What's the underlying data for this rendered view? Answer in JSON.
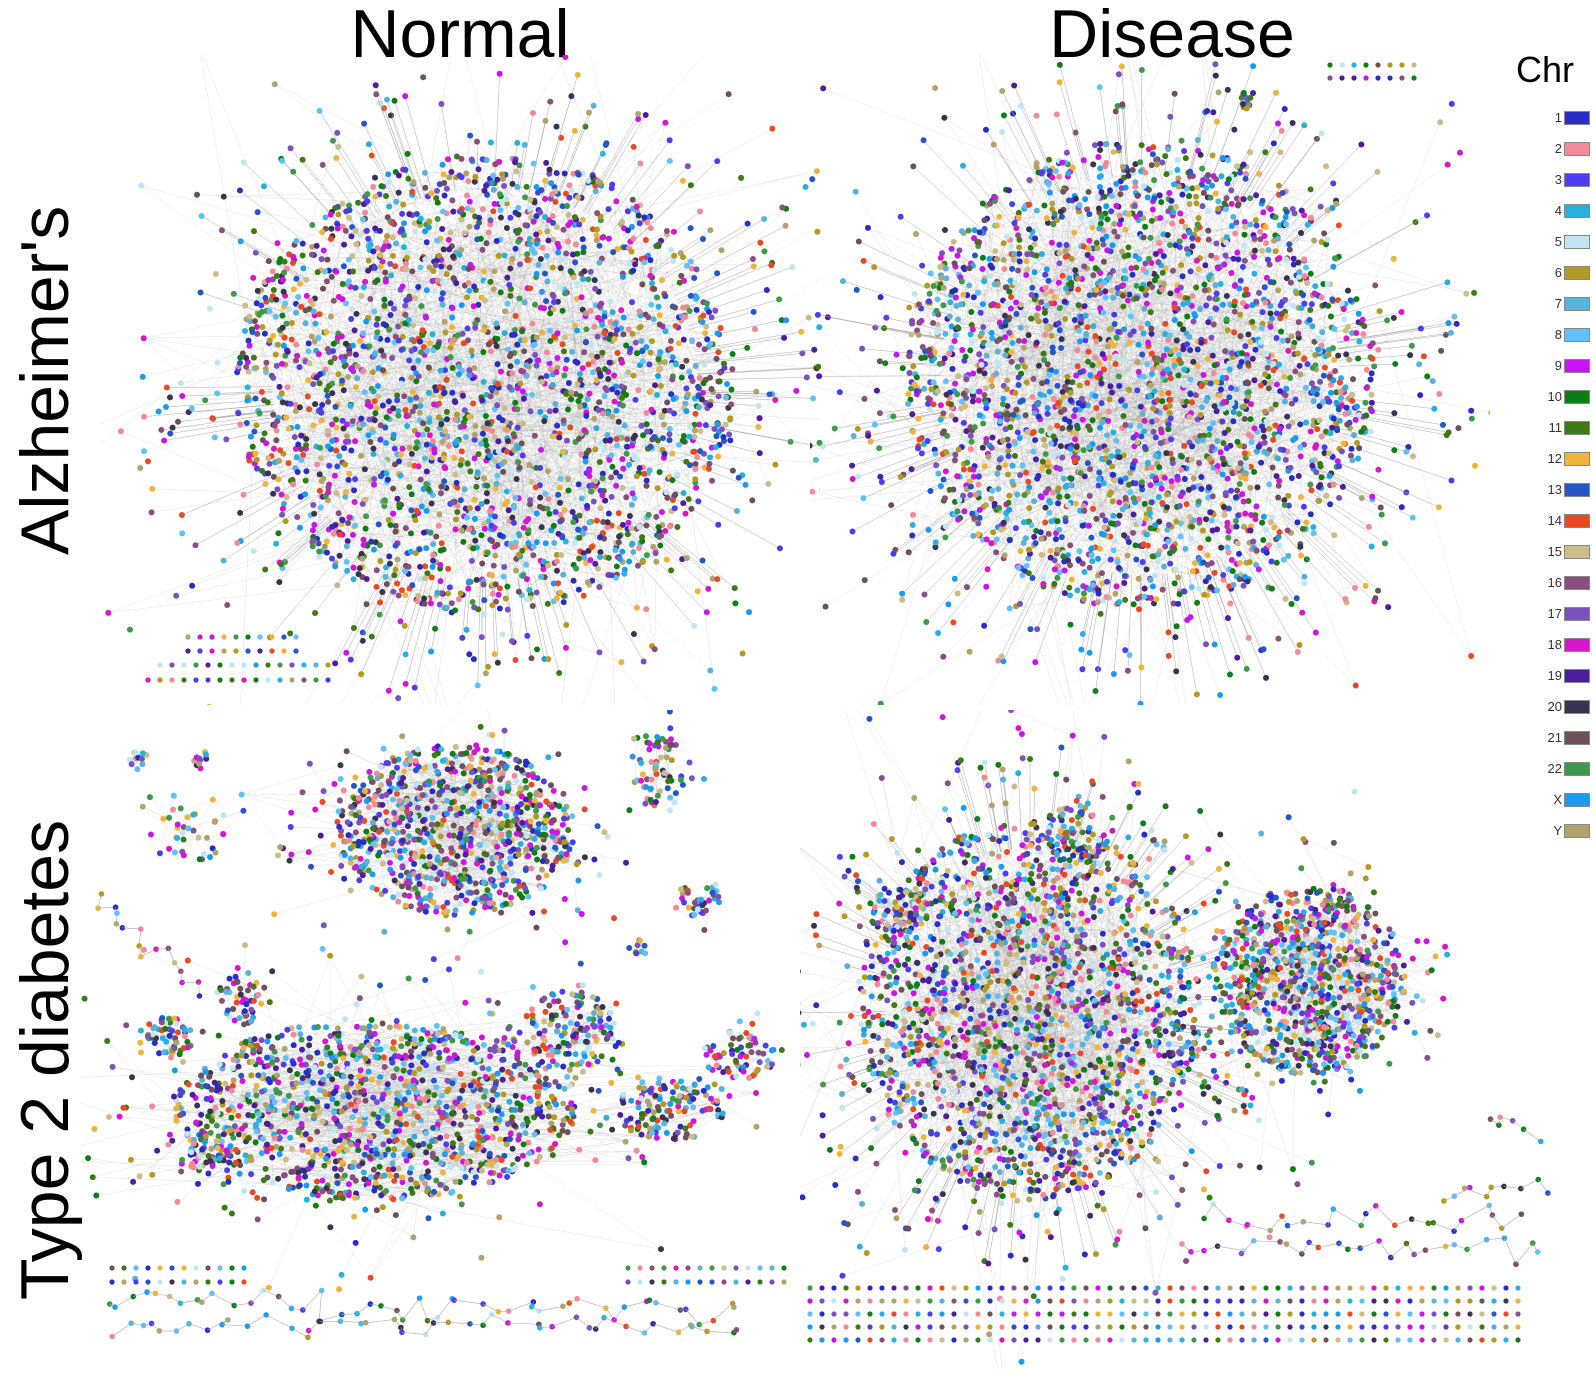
{
  "columns": [
    "Normal",
    "Disease"
  ],
  "rows": [
    "Alzheimer's",
    "Type 2 diabetes"
  ],
  "legend": {
    "title": "Chr",
    "items": [
      {
        "label": "1",
        "color": "#2a2dc4"
      },
      {
        "label": "2",
        "color": "#f28a9a"
      },
      {
        "label": "3",
        "color": "#4a3ef0"
      },
      {
        "label": "4",
        "color": "#29b0e0"
      },
      {
        "label": "5",
        "color": "#bfe6f2"
      },
      {
        "label": "6",
        "color": "#b39a22"
      },
      {
        "label": "7",
        "color": "#5ab2d8"
      },
      {
        "label": "8",
        "color": "#62c0fb"
      },
      {
        "label": "9",
        "color": "#c814f0"
      },
      {
        "label": "10",
        "color": "#0f7d16"
      },
      {
        "label": "11",
        "color": "#3d7a14"
      },
      {
        "label": "12",
        "color": "#efb33e"
      },
      {
        "label": "13",
        "color": "#2456c8"
      },
      {
        "label": "14",
        "color": "#e84a24"
      },
      {
        "label": "15",
        "color": "#cdbb88"
      },
      {
        "label": "16",
        "color": "#8a4f7f"
      },
      {
        "label": "17",
        "color": "#7a52bd"
      },
      {
        "label": "18",
        "color": "#d616c8"
      },
      {
        "label": "19",
        "color": "#4c1d9c"
      },
      {
        "label": "20",
        "color": "#3a3350"
      },
      {
        "label": "21",
        "color": "#6e5058"
      },
      {
        "label": "22",
        "color": "#3e9a4a"
      },
      {
        "label": "X",
        "color": "#1b9af0"
      },
      {
        "label": "Y",
        "color": "#b0a46a"
      }
    ]
  }
}
